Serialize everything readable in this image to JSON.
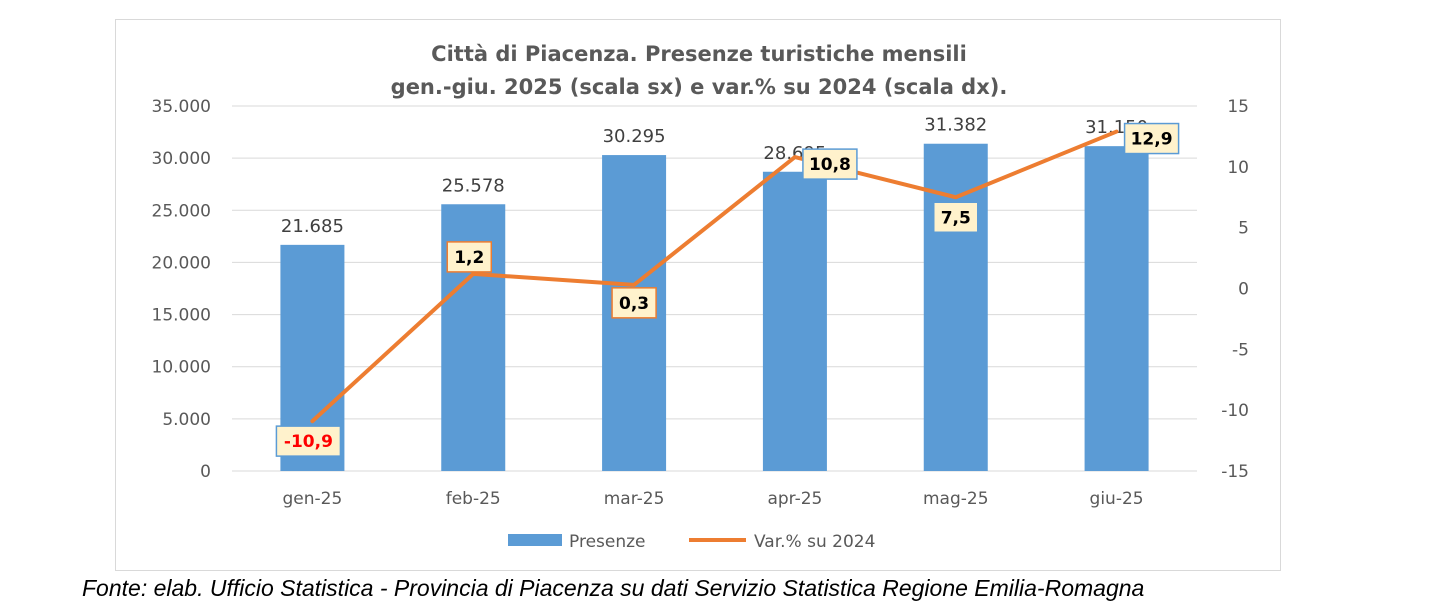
{
  "chart_data": {
    "type": "bar",
    "title_lines": [
      "Città di Piacenza. Presenze turistiche mensili",
      "gen.-giu. 2025 (scala sx) e var.% su 2024 (scala dx)."
    ],
    "categories": [
      "gen-25",
      "feb-25",
      "mar-25",
      "apr-25",
      "mag-25",
      "giu-25"
    ],
    "series": [
      {
        "name": "Presenze",
        "type": "bar",
        "axis": "left",
        "values": [
          21685,
          25578,
          30295,
          28695,
          31382,
          31150
        ],
        "value_labels": [
          "21.685",
          "25.578",
          "30.295",
          "28.695",
          "31.382",
          "31.150"
        ],
        "color": "#5b9bd5"
      },
      {
        "name": "Var.% su 2024",
        "type": "line",
        "axis": "right",
        "values": [
          -10.9,
          1.2,
          0.3,
          10.8,
          7.5,
          12.9
        ],
        "value_labels": [
          "-10,9",
          "1,2",
          "0,3",
          "10,8",
          "7,5",
          "12,9"
        ],
        "color": "#ed7d31"
      }
    ],
    "y_left": {
      "min": 0,
      "max": 35000,
      "ticks": [
        0,
        5000,
        10000,
        15000,
        20000,
        25000,
        30000,
        35000
      ],
      "tick_labels": [
        "0",
        "5.000",
        "10.000",
        "15.000",
        "20.000",
        "25.000",
        "30.000",
        "35.000"
      ]
    },
    "y_right": {
      "min": -15,
      "max": 15,
      "ticks": [
        -15,
        -10,
        -5,
        0,
        5,
        10,
        15
      ],
      "tick_labels": [
        "-15",
        "-10",
        "-5",
        "0",
        "5",
        "10",
        "15"
      ]
    },
    "grid": true,
    "legend_position": "bottom",
    "label_box_fill": "#fff2cc",
    "label_box_borders": [
      "#5b9bd5",
      "#ed7d31",
      "#ed7d31",
      "#5b9bd5",
      "#5b9bd5",
      "#5b9bd5"
    ],
    "label_text_colors": [
      "#ff0000",
      "#000000",
      "#000000",
      "#000000",
      "#000000",
      "#000000"
    ]
  },
  "source_note": "Fonte: elab. Ufficio Statistica - Provincia di Piacenza su dati Servizio Statistica Regione Emilia-Romagna"
}
